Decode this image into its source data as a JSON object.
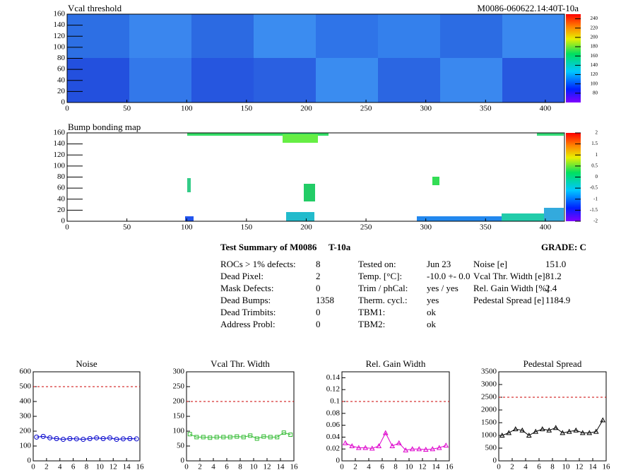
{
  "chart_data": [
    {
      "type": "heatmap",
      "title": "Vcal threshold",
      "subtitle": "M0086-060622.14:40T-10a",
      "xlim": [
        0,
        416
      ],
      "ylim": [
        0,
        160
      ],
      "xticks": [
        0,
        50,
        100,
        150,
        200,
        250,
        300,
        350,
        400
      ],
      "yticks": [
        0,
        20,
        40,
        60,
        80,
        100,
        120,
        140,
        160
      ],
      "zlim": [
        60,
        250
      ],
      "zticks": [
        80,
        100,
        120,
        140,
        160,
        180,
        200,
        220,
        240
      ]
    },
    {
      "type": "heatmap",
      "title": "Bump bonding map",
      "xlim": [
        0,
        416
      ],
      "ylim": [
        0,
        160
      ],
      "xticks": [
        0,
        50,
        100,
        150,
        200,
        250,
        300,
        350,
        400
      ],
      "yticks": [
        0,
        20,
        40,
        60,
        80,
        100,
        120,
        140,
        160
      ],
      "zlim": [
        -2,
        2
      ],
      "zticks": [
        -2,
        -1.5,
        -1,
        -0.5,
        0,
        0.5,
        1,
        1.5,
        2
      ]
    },
    {
      "type": "line",
      "title": "Noise",
      "color": "#0000cc",
      "marker": "circle",
      "x": [
        0.5,
        1.5,
        2.5,
        3.5,
        4.5,
        5.5,
        6.5,
        7.5,
        8.5,
        9.5,
        10.5,
        11.5,
        12.5,
        13.5,
        14.5,
        15.5
      ],
      "values": [
        160,
        165,
        155,
        150,
        145,
        150,
        148,
        145,
        150,
        155,
        150,
        155,
        145,
        148,
        150,
        148
      ],
      "threshold": 500,
      "xlim": [
        0,
        16
      ],
      "xticks": [
        0,
        2,
        4,
        6,
        8,
        10,
        12,
        14,
        16
      ],
      "ylim": [
        0,
        600
      ],
      "yticks": [
        0,
        100,
        200,
        300,
        400,
        500,
        600
      ]
    },
    {
      "type": "line",
      "title": "Vcal Thr. Width",
      "color": "#33bb33",
      "marker": "square",
      "x": [
        0.5,
        1.5,
        2.5,
        3.5,
        4.5,
        5.5,
        6.5,
        7.5,
        8.5,
        9.5,
        10.5,
        11.5,
        12.5,
        13.5,
        14.5,
        15.5
      ],
      "values": [
        90,
        80,
        80,
        78,
        80,
        80,
        80,
        82,
        80,
        85,
        75,
        82,
        80,
        80,
        95,
        88
      ],
      "threshold": 200,
      "xlim": [
        0,
        16
      ],
      "xticks": [
        0,
        2,
        4,
        6,
        8,
        10,
        12,
        14,
        16
      ],
      "ylim": [
        0,
        300
      ],
      "yticks": [
        0,
        50,
        100,
        150,
        200,
        250,
        300
      ]
    },
    {
      "type": "line",
      "title": "Rel. Gain Width",
      "color": "#dd00cc",
      "marker": "triangle",
      "x": [
        0.5,
        1.5,
        2.5,
        3.5,
        4.5,
        5.5,
        6.5,
        7.5,
        8.5,
        9.5,
        10.5,
        11.5,
        12.5,
        13.5,
        14.5,
        15.5
      ],
      "values": [
        0.03,
        0.025,
        0.022,
        0.022,
        0.021,
        0.025,
        0.047,
        0.025,
        0.03,
        0.018,
        0.02,
        0.02,
        0.019,
        0.02,
        0.022,
        0.026
      ],
      "threshold": 0.1,
      "xlim": [
        0,
        16
      ],
      "xticks": [
        0,
        2,
        4,
        6,
        8,
        10,
        12,
        14,
        16
      ],
      "ylim": [
        0,
        0.15
      ],
      "yticks": [
        0,
        0.02,
        0.04,
        0.06,
        0.08,
        0.1,
        0.12,
        0.14
      ]
    },
    {
      "type": "line",
      "title": "Pedestal Spread",
      "color": "#000000",
      "marker": "triangle",
      "x": [
        0.5,
        1.5,
        2.5,
        3.5,
        4.5,
        5.5,
        6.5,
        7.5,
        8.5,
        9.5,
        10.5,
        11.5,
        12.5,
        13.5,
        14.5,
        15.5
      ],
      "values": [
        1000,
        1100,
        1250,
        1200,
        1000,
        1150,
        1250,
        1200,
        1300,
        1100,
        1150,
        1200,
        1100,
        1100,
        1150,
        1600
      ],
      "threshold": 2500,
      "xlim": [
        0,
        16
      ],
      "xticks": [
        0,
        2,
        4,
        6,
        8,
        10,
        12,
        14,
        16
      ],
      "ylim": [
        0,
        3500
      ],
      "yticks": [
        0,
        500,
        1000,
        1500,
        2000,
        2500,
        3000,
        3500
      ]
    }
  ],
  "summary": {
    "title": "Test Summary of M0086",
    "temp": "T-10a",
    "grade": "GRADE:  C",
    "columns": [
      [
        [
          "ROCs > 1% defects:",
          "8"
        ],
        [
          "Dead Pixel:",
          "2"
        ],
        [
          "Mask Defects:",
          "0"
        ],
        [
          "Dead Bumps:",
          "1358"
        ],
        [
          "Dead Trimbits:",
          "0"
        ],
        [
          "Address Probl:",
          "0"
        ]
      ],
      [
        [
          "Tested on:",
          "Jun 23"
        ],
        [
          "Temp. [°C]:",
          "-10.0 +- 0.0"
        ],
        [
          "Trim / phCal:",
          "yes / yes"
        ],
        [
          "Therm. cycl.:",
          "yes"
        ],
        [
          "TBM1:",
          "ok"
        ],
        [
          "TBM2:",
          "ok"
        ]
      ],
      [
        [
          "Noise [e]",
          "151.0"
        ],
        [
          "Vcal Thr. Width [e]",
          "81.2"
        ],
        [
          "Rel. Gain Width [%]",
          "2.4"
        ],
        [
          "Pedestal Spread [e]",
          "1184.9"
        ]
      ]
    ]
  }
}
